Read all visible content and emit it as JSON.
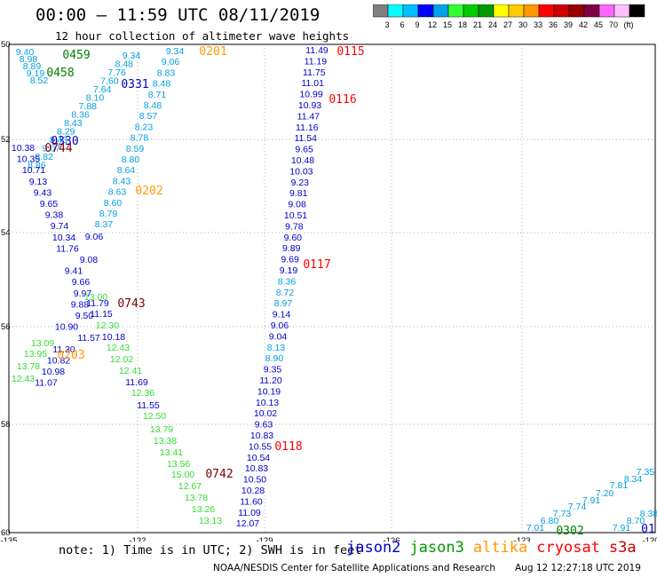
{
  "header": {
    "title": "00:00 – 11:59 UTC 08/11/2019",
    "subtitle": "12 hour collection of altimeter wave heights"
  },
  "colorbar": {
    "colors": [
      "#808080",
      "#00ffff",
      "#00bfff",
      "#0000ff",
      "#00a2e8",
      "#33ff33",
      "#00cc00",
      "#009900",
      "#ffff00",
      "#ffcc00",
      "#ff9900",
      "#ff0000",
      "#cc0000",
      "#990000",
      "#800040",
      "#ff66ff",
      "#ffc0ff",
      "#000000"
    ],
    "labels": [
      "3",
      "6",
      "9",
      "12",
      "15",
      "18",
      "21",
      "24",
      "27",
      "30",
      "33",
      "36",
      "39",
      "42",
      "45",
      "70",
      "(ft)"
    ]
  },
  "axes": {
    "lon_ticks": [
      "-135",
      "-132",
      "-129",
      "-126",
      "-123",
      "-120"
    ],
    "lat_ticks": [
      "50",
      "52",
      "54",
      "56",
      "58",
      "60"
    ]
  },
  "passes": [
    {
      "label": "0115",
      "color": "#ff0000"
    },
    {
      "label": "0116",
      "color": "#ff0000"
    },
    {
      "label": "0117",
      "color": "#ff0000"
    },
    {
      "label": "0118",
      "color": "#ff0000"
    },
    {
      "label": "0201",
      "color": "#ff9900"
    },
    {
      "label": "0202",
      "color": "#ff9900"
    },
    {
      "label": "0203",
      "color": "#ff9900"
    },
    {
      "label": "0331",
      "color": "#0000cc"
    },
    {
      "label": "0330",
      "color": "#0000cc"
    },
    {
      "label": "0744",
      "color": "#800000"
    },
    {
      "label": "0743",
      "color": "#800000"
    },
    {
      "label": "0742",
      "color": "#800000"
    },
    {
      "label": "0458",
      "color": "#008000"
    },
    {
      "label": "0459",
      "color": "#008000"
    },
    {
      "label": "0302",
      "color": "#008000"
    },
    {
      "label": "01",
      "color": "#0000cc"
    }
  ],
  "tracks": {
    "track_0115": [
      "11.49",
      "11.19",
      "11.75",
      "11.01",
      "10.99",
      "10.93",
      "11.47",
      "11.16",
      "11.54",
      "9.65",
      "10.48",
      "10.03",
      "9.23",
      "9.81",
      "9.08",
      "10.51",
      "9.78",
      "9.60",
      "9.89",
      "9.69",
      "9.19",
      "8.36",
      "8.72",
      "8.97",
      "9.14",
      "9.06",
      "9.04",
      "8.13",
      "8.90",
      "9.35",
      "11.20",
      "10.19",
      "10.13",
      "10.02",
      "9.63",
      "10.83",
      "10.55",
      "10.54",
      "10.83",
      "10.50",
      "10.28",
      "11.60",
      "11.09",
      "12.07"
    ],
    "track_0201": [
      "9.34",
      "9.06",
      "8.83",
      "8.48",
      "8.71",
      "8.48",
      "8.57",
      "8.23",
      "8.78",
      "8.59",
      "8.80",
      "8.64",
      "8.43",
      "8.63",
      "8.60",
      "8.79",
      "8.37"
    ],
    "track_0331": [
      "9.34",
      "8.48",
      "7.76",
      "7.60",
      "7.64",
      "8.10",
      "7.88",
      "8.36",
      "8.43",
      "8.29",
      "8.43",
      "9.07",
      "8.82",
      "8.86"
    ],
    "track_0744": [
      "10.38",
      "10.35",
      "10.71",
      "9.13",
      "9.43",
      "9.65",
      "9.38",
      "9.74",
      "10.34",
      "11.76",
      "9.08",
      "9.41",
      "9.66",
      "9.97",
      "9.88",
      "9.50",
      "10.90",
      "11.57",
      "11.30",
      "10.82",
      "10.98",
      "11.07"
    ],
    "track_0743": [
      "9.06",
      "11.79",
      "11.15",
      "10.18",
      "12.43",
      "12.02",
      "12.41",
      "11.69",
      "11.55"
    ],
    "track_green": [
      "13.00",
      "12.30",
      "13.09",
      "13.95",
      "13.78",
      "12.43",
      "12.36",
      "12.50",
      "13.79",
      "13.38",
      "13.41",
      "13.56",
      "15.00",
      "12.67",
      "13.78",
      "13.26",
      "13.13"
    ],
    "track_0458": [
      "9.40",
      "8.98",
      "8.89",
      "9.19",
      "8.52"
    ],
    "track_se": [
      "7.01",
      "6.80",
      "7.73",
      "7.74",
      "7.91",
      "7.20",
      "7.81",
      "8.34",
      "7.35",
      "7.91",
      "8.70",
      "8.38"
    ]
  },
  "footer": {
    "note": "note: 1) Time is in UTC; 2) SWH is in feet",
    "credit": "NOAA/NESDIS Center for Satellite Applications and Research",
    "timestamp": "Aug 12 12:27:18 UTC 2019",
    "legend": [
      {
        "name": "jason2",
        "color": "#0000cc"
      },
      {
        "name": "jason3",
        "color": "#009900"
      },
      {
        "name": "altika",
        "color": "#ff9900"
      },
      {
        "name": "cryosat",
        "color": "#ff0000"
      },
      {
        "name": "s3a",
        "color": "#cc0000"
      }
    ]
  }
}
